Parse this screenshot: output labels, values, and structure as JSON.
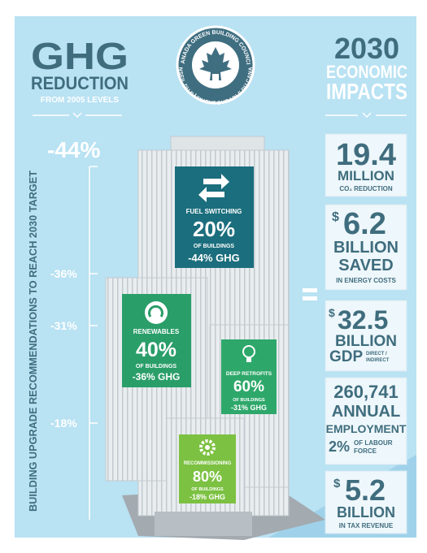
{
  "left_header": {
    "title": "GHG",
    "subtitle": "REDUCTION",
    "note": "FROM 2005 LEVELS"
  },
  "logo": {
    "top": "CANADA GREEN BUILDING COUNCIL",
    "bottom": "CONSEIL DU BÂTIMENT DURABLE DU CANADA"
  },
  "right_header": {
    "lines": [
      "2030",
      "ECONOMIC",
      "IMPACTS"
    ]
  },
  "side_label": "BUILDING UPGRADE RECOMMENDATIONS TO REACH 2030 TARGET",
  "scale": [
    "-44%",
    "-36%",
    "-31%",
    "-18%"
  ],
  "measures": [
    {
      "name": "FUEL SWITCHING",
      "share": "20%",
      "share_label": "OF BUILDINGS",
      "ghg": "-44% GHG"
    },
    {
      "name": "RENEWABLES",
      "share": "40%",
      "share_label": "OF BUILDINGS",
      "ghg": "-36% GHG"
    },
    {
      "name": "DEEP RETROFITS",
      "share": "60%",
      "share_label": "OF BUILDINGS",
      "ghg": "-31% GHG"
    },
    {
      "name": "RECOMMISSIONING",
      "share": "80%",
      "share_label": "OF BUILDINGS",
      "ghg": "-18% GHG"
    }
  ],
  "impacts": [
    {
      "value": "19.4",
      "unit": "MILLION",
      "note": "CO₂ REDUCTION"
    },
    {
      "currency": "$",
      "value": "6.2",
      "unit": "BILLION",
      "unit2": "SAVED",
      "note": "IN ENERGY COSTS"
    },
    {
      "currency": "$",
      "value": "32.5",
      "unit": "BILLION",
      "unit2": "GDP",
      "note": [
        "DIRECT /",
        "INDIRECT"
      ]
    },
    {
      "value": "260,741",
      "unit": "ANNUAL",
      "unit2": "EMPLOYMENT",
      "share": "2%",
      "note": [
        "OF LABOUR",
        "FORCE"
      ]
    },
    {
      "currency": "$",
      "value": "5.2",
      "unit": "BILLION",
      "note": "IN TAX REVENUE"
    }
  ]
}
